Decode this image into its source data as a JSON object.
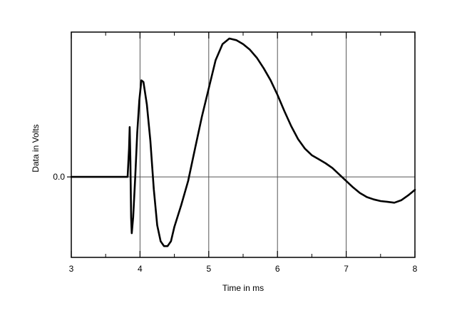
{
  "chart_data": {
    "type": "line",
    "title": "",
    "xlabel": "Time in ms",
    "ylabel": "Data in Volts",
    "xlim": [
      3,
      8
    ],
    "ylim": [
      -1.0,
      1.8
    ],
    "x_ticks": [
      {
        "value": 3,
        "label": "3"
      },
      {
        "value": 4,
        "label": "4"
      },
      {
        "value": 5,
        "label": "5"
      },
      {
        "value": 6,
        "label": "6"
      },
      {
        "value": 7,
        "label": "7"
      },
      {
        "value": 8,
        "label": "8"
      }
    ],
    "y_ticks": [
      {
        "value": 0.0,
        "label": "0.0"
      }
    ],
    "grid": {
      "vertical": true,
      "horizontal": "zero line only"
    },
    "series": [
      {
        "color": "#000000",
        "points": [
          [
            3.0,
            0.0
          ],
          [
            3.82,
            0.0
          ],
          [
            3.84,
            0.35
          ],
          [
            3.85,
            0.62
          ],
          [
            3.86,
            0.2
          ],
          [
            3.87,
            -0.5
          ],
          [
            3.88,
            -0.7
          ],
          [
            3.9,
            -0.5
          ],
          [
            3.93,
            0.0
          ],
          [
            3.96,
            0.55
          ],
          [
            3.99,
            0.95
          ],
          [
            4.02,
            1.2
          ],
          [
            4.05,
            1.18
          ],
          [
            4.1,
            0.9
          ],
          [
            4.15,
            0.45
          ],
          [
            4.2,
            -0.15
          ],
          [
            4.25,
            -0.6
          ],
          [
            4.3,
            -0.8
          ],
          [
            4.35,
            -0.86
          ],
          [
            4.4,
            -0.86
          ],
          [
            4.45,
            -0.8
          ],
          [
            4.5,
            -0.62
          ],
          [
            4.6,
            -0.35
          ],
          [
            4.7,
            -0.05
          ],
          [
            4.8,
            0.35
          ],
          [
            4.9,
            0.75
          ],
          [
            5.0,
            1.1
          ],
          [
            5.1,
            1.45
          ],
          [
            5.2,
            1.65
          ],
          [
            5.3,
            1.72
          ],
          [
            5.4,
            1.7
          ],
          [
            5.5,
            1.65
          ],
          [
            5.6,
            1.58
          ],
          [
            5.7,
            1.48
          ],
          [
            5.8,
            1.35
          ],
          [
            5.9,
            1.2
          ],
          [
            6.0,
            1.02
          ],
          [
            6.1,
            0.82
          ],
          [
            6.2,
            0.63
          ],
          [
            6.3,
            0.47
          ],
          [
            6.4,
            0.35
          ],
          [
            6.5,
            0.27
          ],
          [
            6.6,
            0.22
          ],
          [
            6.7,
            0.17
          ],
          [
            6.8,
            0.11
          ],
          [
            6.9,
            0.03
          ],
          [
            7.0,
            -0.05
          ],
          [
            7.1,
            -0.13
          ],
          [
            7.2,
            -0.2
          ],
          [
            7.3,
            -0.25
          ],
          [
            7.4,
            -0.28
          ],
          [
            7.5,
            -0.3
          ],
          [
            7.6,
            -0.31
          ],
          [
            7.7,
            -0.32
          ],
          [
            7.8,
            -0.29
          ],
          [
            7.9,
            -0.23
          ],
          [
            8.0,
            -0.16
          ]
        ]
      }
    ]
  }
}
